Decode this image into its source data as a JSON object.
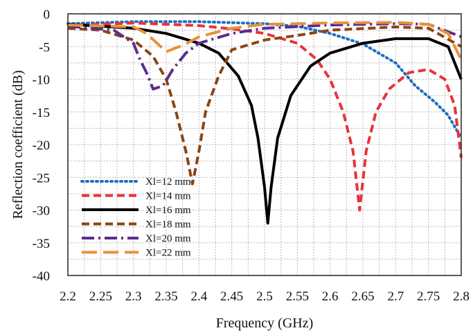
{
  "chart_data": {
    "type": "line",
    "title": "",
    "xlabel": "Frequency (GHz)",
    "ylabel": "Reflection coefficient (dB)",
    "xlim": [
      2.2,
      2.8
    ],
    "ylim": [
      -40,
      0
    ],
    "xticks": [
      2.2,
      2.25,
      2.3,
      2.35,
      2.4,
      2.45,
      2.5,
      2.55,
      2.6,
      2.65,
      2.7,
      2.75,
      2.8
    ],
    "xtick_labels": [
      "2.2",
      "2.25",
      "2.3",
      "2.35",
      "2.4",
      "2.45",
      "2.5",
      "2.55",
      "2.6",
      "2.65",
      "2.7",
      "2.75",
      "2.8"
    ],
    "yticks": [
      0,
      -5,
      -10,
      -15,
      -20,
      -25,
      -30,
      -35,
      -40
    ],
    "ytick_labels": [
      "0",
      "-5",
      "-10",
      "-15",
      "-20",
      "-25",
      "-30",
      "-35",
      "-40"
    ],
    "grid": true,
    "legend_position": "bottom-left",
    "series": [
      {
        "name": "Xl=12 mm",
        "color": "#1f6fbf",
        "style": "dotted",
        "points": [
          [
            2.2,
            -1.5
          ],
          [
            2.3,
            -1.2
          ],
          [
            2.4,
            -1.2
          ],
          [
            2.5,
            -1.5
          ],
          [
            2.55,
            -1.9
          ],
          [
            2.6,
            -3.0
          ],
          [
            2.65,
            -4.6
          ],
          [
            2.7,
            -7.5
          ],
          [
            2.73,
            -11.0
          ],
          [
            2.76,
            -13.5
          ],
          [
            2.78,
            -15.5
          ],
          [
            2.8,
            -19.0
          ]
        ]
      },
      {
        "name": "Xl=14 mm",
        "color": "#e8333a",
        "style": "dashed",
        "points": [
          [
            2.2,
            -1.8
          ],
          [
            2.3,
            -1.4
          ],
          [
            2.4,
            -1.8
          ],
          [
            2.45,
            -2.3
          ],
          [
            2.5,
            -3.0
          ],
          [
            2.55,
            -4.5
          ],
          [
            2.58,
            -7.0
          ],
          [
            2.6,
            -10.0
          ],
          [
            2.62,
            -15.0
          ],
          [
            2.635,
            -21.0
          ],
          [
            2.645,
            -30.0
          ],
          [
            2.655,
            -21.0
          ],
          [
            2.67,
            -15.0
          ],
          [
            2.69,
            -11.5
          ],
          [
            2.72,
            -9.0
          ],
          [
            2.75,
            -8.5
          ],
          [
            2.775,
            -10.0
          ],
          [
            2.79,
            -14.0
          ],
          [
            2.8,
            -22.0
          ]
        ]
      },
      {
        "name": "Xl=16 mm",
        "color": "#000000",
        "style": "solid",
        "points": [
          [
            2.2,
            -1.6
          ],
          [
            2.3,
            -2.2
          ],
          [
            2.35,
            -3.0
          ],
          [
            2.4,
            -4.5
          ],
          [
            2.43,
            -6.0
          ],
          [
            2.46,
            -9.5
          ],
          [
            2.48,
            -14.0
          ],
          [
            2.49,
            -19.0
          ],
          [
            2.5,
            -26.5
          ],
          [
            2.505,
            -32.0
          ],
          [
            2.51,
            -26.5
          ],
          [
            2.52,
            -19.0
          ],
          [
            2.54,
            -12.5
          ],
          [
            2.57,
            -8.0
          ],
          [
            2.6,
            -6.0
          ],
          [
            2.65,
            -4.5
          ],
          [
            2.7,
            -3.8
          ],
          [
            2.75,
            -3.8
          ],
          [
            2.78,
            -5.0
          ],
          [
            2.8,
            -10.0
          ]
        ]
      },
      {
        "name": "Xl=18 mm",
        "color": "#8b4513",
        "style": "dashed",
        "points": [
          [
            2.2,
            -2.2
          ],
          [
            2.25,
            -2.5
          ],
          [
            2.3,
            -4.0
          ],
          [
            2.33,
            -6.5
          ],
          [
            2.35,
            -10.0
          ],
          [
            2.365,
            -15.0
          ],
          [
            2.38,
            -21.0
          ],
          [
            2.39,
            -26.0
          ],
          [
            2.4,
            -21.0
          ],
          [
            2.41,
            -15.0
          ],
          [
            2.43,
            -9.5
          ],
          [
            2.45,
            -5.5
          ],
          [
            2.5,
            -4.0
          ],
          [
            2.55,
            -3.3
          ],
          [
            2.6,
            -2.5
          ],
          [
            2.7,
            -2.0
          ],
          [
            2.75,
            -2.2
          ],
          [
            2.8,
            -5.0
          ]
        ]
      },
      {
        "name": "Xl=20 mm",
        "color": "#5b2c8f",
        "style": "dashdot",
        "points": [
          [
            2.2,
            -1.9
          ],
          [
            2.27,
            -2.5
          ],
          [
            2.3,
            -4.5
          ],
          [
            2.31,
            -7.0
          ],
          [
            2.32,
            -9.0
          ],
          [
            2.33,
            -11.5
          ],
          [
            2.345,
            -11.0
          ],
          [
            2.36,
            -8.5
          ],
          [
            2.38,
            -6.0
          ],
          [
            2.4,
            -4.5
          ],
          [
            2.45,
            -3.0
          ],
          [
            2.5,
            -2.2
          ],
          [
            2.6,
            -1.7
          ],
          [
            2.7,
            -1.5
          ],
          [
            2.75,
            -1.6
          ],
          [
            2.8,
            -3.5
          ]
        ]
      },
      {
        "name": "Xl=22 mm",
        "color": "#e8913a",
        "style": "longdash",
        "points": [
          [
            2.2,
            -1.7
          ],
          [
            2.3,
            -2.0
          ],
          [
            2.32,
            -3.0
          ],
          [
            2.35,
            -5.8
          ],
          [
            2.38,
            -4.6
          ],
          [
            2.4,
            -3.5
          ],
          [
            2.45,
            -2.2
          ],
          [
            2.5,
            -1.6
          ],
          [
            2.6,
            -1.4
          ],
          [
            2.7,
            -1.3
          ],
          [
            2.75,
            -1.6
          ],
          [
            2.78,
            -3.0
          ],
          [
            2.8,
            -7.0
          ]
        ]
      }
    ]
  }
}
